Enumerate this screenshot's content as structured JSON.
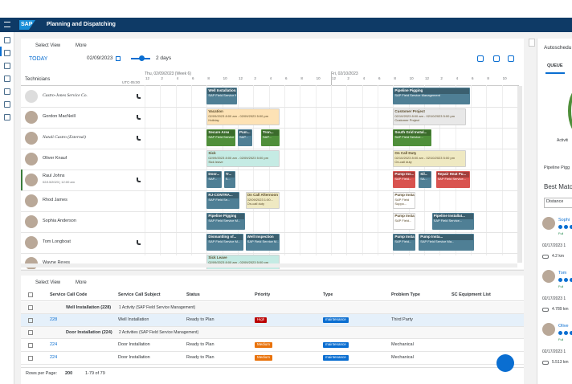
{
  "shell": {
    "brand": "SAP",
    "title": "Planning and Dispatching"
  },
  "gantt": {
    "select_view": "Select View",
    "more": "More",
    "today": "TODAY",
    "date": "02/09/2023",
    "range": "2 days",
    "technicians_label": "Technicians",
    "timezone": "UTC-05:00",
    "days": [
      {
        "label": "Thu, 02/09/2023 (Week 6)",
        "hours": [
          "12",
          "2",
          "4",
          "6",
          "8",
          "10",
          "12",
          "2",
          "4",
          "6",
          "8",
          "10"
        ]
      },
      {
        "label": "Fri, 02/10/2023",
        "hours": [
          "12",
          "2",
          "4",
          "6",
          "8",
          "10",
          "12",
          "2",
          "4",
          "6",
          "8",
          "10"
        ]
      }
    ],
    "technicians": [
      {
        "name": "Castro-Jones Service Co."
      },
      {
        "name": "Gordon MacNeill"
      },
      {
        "name": "Natali Castro (External)"
      },
      {
        "name": "Oliver Knauf"
      },
      {
        "name": "Raul Johns",
        "sub": "02/13/2023 | 12:00 am"
      },
      {
        "name": "Rhod James"
      },
      {
        "name": "Sophia Anderson"
      },
      {
        "name": "Tom Longboat"
      },
      {
        "name": "Wayne Reyes"
      }
    ],
    "tasks": [
      {
        "label": "Well Installation...",
        "lines": [
          "SAP Field Service M..."
        ],
        "color": "#4f7f95"
      },
      {
        "label": "Pipeline Pigging",
        "lines": [
          "SAP Field Service Management"
        ],
        "color": "#4f7f95"
      },
      {
        "label": "Vacation",
        "lines": [
          "02/09/2023 8:00 am - 02/09/2023 5:00 pm",
          "Holiday"
        ],
        "color": "#fde2b5"
      },
      {
        "label": "Customer Project",
        "lines": [
          "02/10/2023 8:00 am - 02/10/2023 5:00 pm",
          "Customer Project"
        ],
        "color": "#e8e8e8"
      },
      {
        "label": "Secure Area",
        "lines": [
          "SAP Field Service M..."
        ],
        "color": "#4f8f3a"
      },
      {
        "label": "Pum...",
        "lines": [
          "SAP..."
        ],
        "color": "#4f7f95"
      },
      {
        "label": "Tron...",
        "lines": [
          "SAP..."
        ],
        "color": "#4f8f3a"
      },
      {
        "label": "South Grid Instal...",
        "lines": [
          "SAP Field Service..."
        ],
        "color": "#4f8f3a"
      },
      {
        "label": "Sick",
        "lines": [
          "02/09/2023 8:00 am - 02/09/2023 5:00 pm",
          "Sick leave"
        ],
        "color": "#c5ebe4"
      },
      {
        "label": "On Call Duty",
        "lines": [
          "02/10/2023 8:00 am - 02/10/2023 5:00 pm",
          "On-call duty"
        ],
        "color": "#efe9c2"
      },
      {
        "label": "Door...",
        "lines": [
          "SAP..."
        ],
        "color": "#4f7f95"
      },
      {
        "label": "Tr...",
        "lines": [
          "S..."
        ],
        "color": "#4f7f95"
      },
      {
        "label": "Pump Ins...",
        "lines": [
          "SAP Field..."
        ],
        "color": "#d9534f"
      },
      {
        "label": "Sil...",
        "lines": [
          "SA..."
        ],
        "color": "#4f7f95"
      },
      {
        "label": "Repair Heat Pu...",
        "lines": [
          "SAP Field Service..."
        ],
        "color": "#d9534f"
      },
      {
        "label": "RJ-CONTRA...",
        "lines": [
          "SAP Field Se..."
        ],
        "color": "#4f7f95"
      },
      {
        "label": "On Call Afternoon",
        "lines": [
          "02/09/2023 1:00...",
          "On-call duty"
        ],
        "color": "#efe9c2"
      },
      {
        "label": "Pump Insta...",
        "lines": [
          "SAP Field",
          "Suppo..."
        ],
        "color": "#ffffff"
      },
      {
        "label": "Pipeline Pigging",
        "lines": [
          "SAP Field Service M..."
        ],
        "color": "#4f7f95"
      },
      {
        "label": "Pump Insta...",
        "lines": [
          "SAP Field..."
        ],
        "color": "#ffffff"
      },
      {
        "label": "Pipeline Installat...",
        "lines": [
          "SAP Field Service..."
        ],
        "color": "#4f7f95"
      },
      {
        "label": "Dismantling of...",
        "lines": [
          "SAP Field Service M..."
        ],
        "color": "#4f7f95"
      },
      {
        "label": "Well Inspection",
        "lines": [
          "SAP Field Service M..."
        ],
        "color": "#4f7f95"
      },
      {
        "label": "Pump Insta...",
        "lines": [
          "SAP Field..."
        ],
        "color": "#4f7f95"
      },
      {
        "label": "Pump Insta...",
        "lines": [
          "SAP Field Service Ma..."
        ],
        "color": "#4f7f95"
      },
      {
        "label": "Sick Leave",
        "lines": [
          "02/09/2023 8:00 am - 02/09/2023 5:00 pm"
        ],
        "color": "#c5ebe4"
      }
    ]
  },
  "table": {
    "select_view": "Select View",
    "more": "More",
    "columns": [
      "Service Call Code",
      "Service Call Subject",
      "Status",
      "Priority",
      "Type",
      "Problem Type",
      "SC Equipment List"
    ],
    "priority_colors": {
      "High": "#bb0000",
      "Medium": "#e9730c"
    },
    "type_color": "#0a6ed1",
    "groups": [
      {
        "title": "Well Installation (228)",
        "info": "1 Activity (SAP Field Service Management)",
        "rows": [
          [
            "228",
            "Well Installation",
            "Ready to Plan",
            "High",
            "maintenance",
            "Third Party"
          ]
        ]
      },
      {
        "title": "Door Installation (224)",
        "info": "2 Activities (SAP Field Service Management)",
        "rows": [
          [
            "224",
            "Door Installation",
            "Ready to Plan",
            "Medium",
            "maintenance",
            "Mechanical"
          ],
          [
            "224",
            "Door Installation",
            "Ready to Plan",
            "Medium",
            "maintenance",
            "Mechanical"
          ]
        ]
      }
    ],
    "footer": {
      "rows_label": "Rows per Page:",
      "rows_value": "200",
      "count": "1-79 of 79"
    }
  },
  "side": {
    "title": "Autoschedu",
    "queue": "QUEUE",
    "activity": "Activiti",
    "task": "Pipeline Pigg",
    "best": "Best Matc",
    "sort": "Distance",
    "candidates": [
      {
        "name": "Sophi",
        "status": "Full",
        "date": "02/17/2023 1",
        "distance": "4.2 km"
      },
      {
        "name": "Tom",
        "status": "Full",
        "date": "02/17/2023 1",
        "distance": "4.789 km"
      },
      {
        "name": "Olive",
        "status": "Full",
        "date": "02/17/2023 1",
        "distance": "5.513 km"
      }
    ]
  }
}
